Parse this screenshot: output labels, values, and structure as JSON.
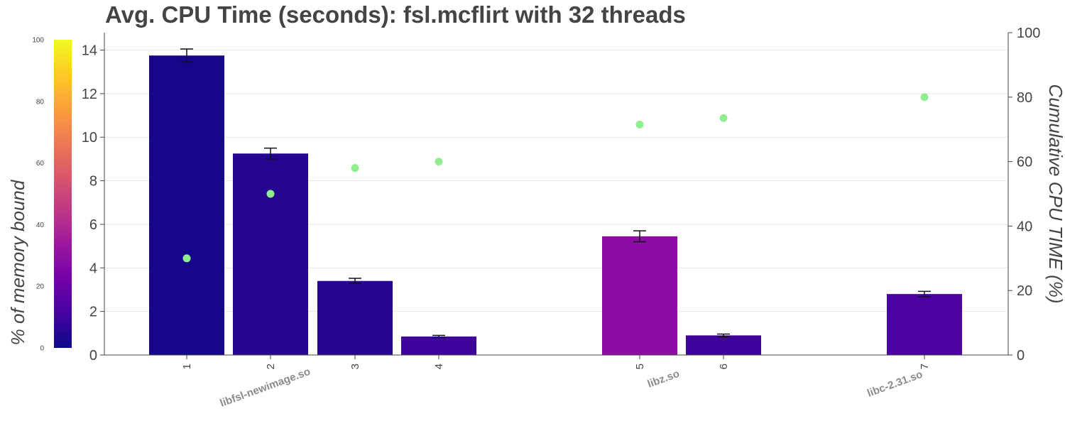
{
  "title": "Avg. CPU Time (seconds): fsl.mcflirt with 32 threads",
  "colorbar": {
    "label": "% of memory bound",
    "ticks": [
      0,
      20,
      40,
      60,
      80,
      100
    ],
    "colorscale": [
      "#0d0887",
      "#46039f",
      "#7201a8",
      "#9c179e",
      "#bd3786",
      "#d8576b",
      "#ed7953",
      "#fb9f3a",
      "#fdca26",
      "#f0f921"
    ]
  },
  "chart_data": {
    "type": "bar",
    "title": "Avg. CPU Time (seconds): fsl.mcflirt with 32 threads",
    "x_ticks": [
      "1",
      "2",
      "3",
      "4",
      "5",
      "6",
      "7"
    ],
    "categories": [
      "1",
      "2",
      "3",
      "4",
      "5",
      "6",
      "7"
    ],
    "group_labels": [
      "libfsl-newimage.so",
      "libz.so",
      "libc-2.31.so"
    ],
    "groups": [
      0,
      0,
      0,
      0,
      1,
      1,
      2
    ],
    "values": [
      13.75,
      9.25,
      3.4,
      0.85,
      5.45,
      0.9,
      2.8
    ],
    "errors": [
      0.3,
      0.25,
      0.12,
      0.05,
      0.25,
      0.06,
      0.12
    ],
    "memory_bound_pct": [
      3,
      10,
      10,
      16,
      48,
      16,
      18
    ],
    "cumulative_pct": [
      30,
      50,
      58,
      60,
      71.5,
      73.5,
      80
    ],
    "y_left": {
      "label": "",
      "range": [
        0,
        14.8
      ],
      "ticks": [
        0,
        2,
        4,
        6,
        8,
        10,
        12,
        14
      ]
    },
    "y_right": {
      "label": "Cumulative CPU TIME (%)",
      "range": [
        0,
        100
      ],
      "ticks": [
        0,
        20,
        40,
        60,
        80,
        100
      ]
    },
    "bar_colors": [
      "#15068a",
      "#260591",
      "#260591",
      "#3f049c",
      "#8e0ca4",
      "#3f049c",
      "#4a02a0"
    ],
    "point_color": "#90ee90",
    "grid": true
  }
}
